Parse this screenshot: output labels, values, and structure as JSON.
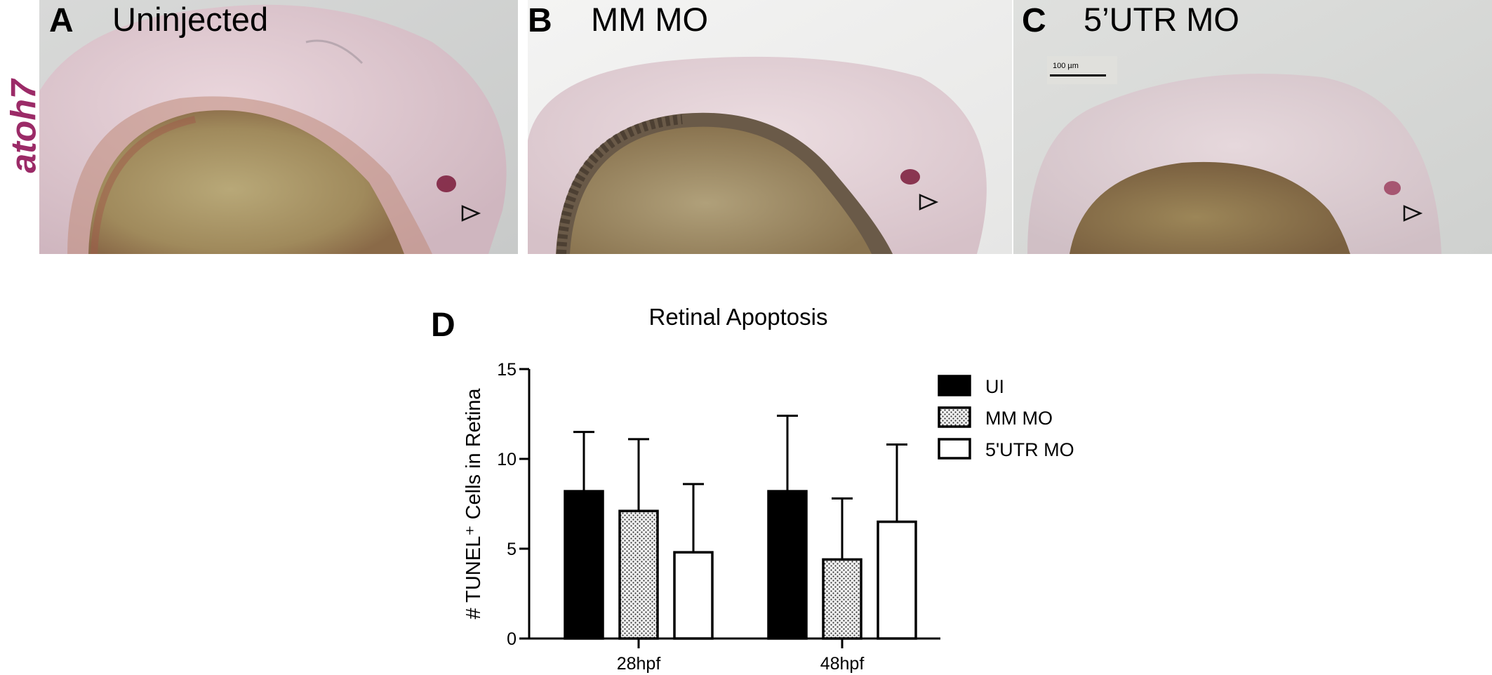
{
  "figure": {
    "gene_label": "atoh7",
    "panels": [
      {
        "letter": "A",
        "title": "Uninjected"
      },
      {
        "letter": "B",
        "title": "MM MO"
      },
      {
        "letter": "C",
        "title": "5’UTR MO",
        "scale_bar": "100 µm"
      }
    ]
  },
  "chart_data": {
    "letter": "D",
    "type": "bar",
    "title": "Retinal Apoptosis",
    "xlabel": "",
    "ylabel": "# TUNEL⁺ Cells in Retina",
    "categories": [
      "28hpf",
      "48hpf"
    ],
    "yticks": [
      "0",
      "5",
      "10",
      "15"
    ],
    "ylim": [
      0,
      15
    ],
    "series": [
      {
        "name": "UI",
        "values": [
          8.2,
          8.2
        ],
        "errors": [
          3.3,
          4.2
        ],
        "fill": "solid-black"
      },
      {
        "name": "MM MO",
        "values": [
          7.1,
          4.4
        ],
        "errors": [
          4.0,
          3.4
        ],
        "fill": "dotted-gray"
      },
      {
        "name": "5'UTR MO",
        "values": [
          4.8,
          6.5
        ],
        "errors": [
          3.8,
          4.3
        ],
        "fill": "white"
      }
    ],
    "legend_position": "right",
    "grid": false
  }
}
